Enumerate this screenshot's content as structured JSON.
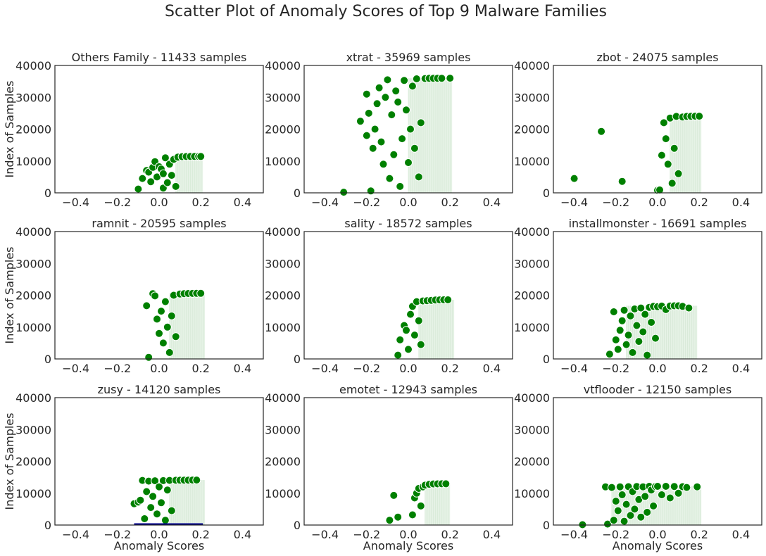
{
  "chart_data": {
    "type": "scatter",
    "title": "Scatter Plot of Anomaly Scores of Top 9 Malware Families",
    "xlabel": "Anomaly Scores",
    "ylabel": "Index of Samples",
    "xlim": [
      -0.5,
      0.5
    ],
    "ylim": [
      0,
      40000
    ],
    "x_ticks": [
      "−0.4",
      "−0.2",
      "0.0",
      "0.2",
      "0.4"
    ],
    "y_ticks": [
      "0",
      "10000",
      "20000",
      "30000",
      "40000"
    ],
    "grid": false,
    "colors": {
      "points": "#008000",
      "point_edge": "#ffffff",
      "dense_band": "#e6f2e6",
      "zusy_line": "#00008b"
    },
    "panels": [
      {
        "family": "Others Family",
        "title": "Others Family - 11433 samples",
        "samples": 11433,
        "dense_range": [
          0.08,
          0.21
        ],
        "points": [
          [
            -0.1,
            1200
          ],
          [
            -0.08,
            4500
          ],
          [
            -0.06,
            7000
          ],
          [
            -0.05,
            6500
          ],
          [
            -0.04,
            3500
          ],
          [
            -0.03,
            8000
          ],
          [
            -0.02,
            9800
          ],
          [
            -0.01,
            5000
          ],
          [
            0.0,
            8200
          ],
          [
            0.01,
            7500
          ],
          [
            0.02,
            1500
          ],
          [
            0.02,
            6000
          ],
          [
            0.03,
            11000
          ],
          [
            0.04,
            3200
          ],
          [
            0.05,
            9000
          ],
          [
            0.06,
            5500
          ],
          [
            0.07,
            10500
          ],
          [
            0.08,
            2000
          ],
          [
            0.09,
            11200
          ],
          [
            0.11,
            11350
          ],
          [
            0.13,
            11400
          ],
          [
            0.15,
            11420
          ],
          [
            0.17,
            11430
          ],
          [
            0.19,
            11433
          ],
          [
            0.2,
            11433
          ]
        ]
      },
      {
        "family": "xtrat",
        "title": "xtrat - 35969 samples",
        "samples": 35969,
        "dense_range": [
          0.0,
          0.21
        ],
        "points": [
          [
            -0.31,
            200
          ],
          [
            -0.23,
            22500
          ],
          [
            -0.2,
            31000
          ],
          [
            -0.2,
            18000
          ],
          [
            -0.19,
            25000
          ],
          [
            -0.18,
            600
          ],
          [
            -0.17,
            14000
          ],
          [
            -0.16,
            20000
          ],
          [
            -0.15,
            28000
          ],
          [
            -0.14,
            33000
          ],
          [
            -0.13,
            16000
          ],
          [
            -0.12,
            9000
          ],
          [
            -0.11,
            30000
          ],
          [
            -0.1,
            35500
          ],
          [
            -0.09,
            4500
          ],
          [
            -0.08,
            24500
          ],
          [
            -0.07,
            12000
          ],
          [
            -0.06,
            32000
          ],
          [
            -0.05,
            28500
          ],
          [
            -0.04,
            2000
          ],
          [
            -0.03,
            17000
          ],
          [
            -0.02,
            35300
          ],
          [
            -0.01,
            26000
          ],
          [
            0.0,
            9500
          ],
          [
            0.01,
            20000
          ],
          [
            0.02,
            33500
          ],
          [
            0.03,
            14000
          ],
          [
            0.04,
            35800
          ],
          [
            0.05,
            5000
          ],
          [
            0.06,
            22000
          ],
          [
            0.08,
            35900
          ],
          [
            0.1,
            35950
          ],
          [
            0.12,
            35960
          ],
          [
            0.14,
            35969
          ],
          [
            0.16,
            35969
          ],
          [
            0.2,
            36000
          ]
        ]
      },
      {
        "family": "zbot",
        "title": "zbot - 24075 samples",
        "samples": 24075,
        "dense_range": [
          0.06,
          0.21
        ],
        "points": [
          [
            -0.4,
            4500
          ],
          [
            -0.27,
            19300
          ],
          [
            -0.17,
            3600
          ],
          [
            0.0,
            800
          ],
          [
            0.01,
            900
          ],
          [
            0.02,
            11800
          ],
          [
            0.03,
            22000
          ],
          [
            0.04,
            17000
          ],
          [
            0.05,
            9000
          ],
          [
            0.06,
            23500
          ],
          [
            0.07,
            3000
          ],
          [
            0.08,
            14000
          ],
          [
            0.09,
            24000
          ],
          [
            0.1,
            6000
          ],
          [
            0.12,
            23800
          ],
          [
            0.14,
            24000
          ],
          [
            0.16,
            24050
          ],
          [
            0.18,
            24075
          ],
          [
            0.2,
            24075
          ]
        ]
      },
      {
        "family": "ramnit",
        "title": "ramnit - 20595 samples",
        "samples": 20595,
        "dense_range": [
          0.05,
          0.22
        ],
        "points": [
          [
            -0.06,
            16700
          ],
          [
            -0.05,
            500
          ],
          [
            -0.03,
            20500
          ],
          [
            -0.02,
            19800
          ],
          [
            -0.01,
            12500
          ],
          [
            0.0,
            8000
          ],
          [
            0.01,
            15000
          ],
          [
            0.02,
            5000
          ],
          [
            0.03,
            18000
          ],
          [
            0.04,
            10000
          ],
          [
            0.05,
            2000
          ],
          [
            0.06,
            13500
          ],
          [
            0.07,
            20000
          ],
          [
            0.08,
            7000
          ],
          [
            0.1,
            20400
          ],
          [
            0.12,
            20500
          ],
          [
            0.14,
            20550
          ],
          [
            0.16,
            20580
          ],
          [
            0.18,
            20595
          ],
          [
            0.2,
            20595
          ]
        ]
      },
      {
        "family": "sality",
        "title": "sality - 18572 samples",
        "samples": 18572,
        "dense_range": [
          0.05,
          0.22
        ],
        "points": [
          [
            -0.05,
            1200
          ],
          [
            -0.04,
            6000
          ],
          [
            -0.02,
            10500
          ],
          [
            -0.01,
            9000
          ],
          [
            0.0,
            3000
          ],
          [
            0.01,
            14000
          ],
          [
            0.02,
            16500
          ],
          [
            0.03,
            7500
          ],
          [
            0.04,
            18000
          ],
          [
            0.05,
            12000
          ],
          [
            0.06,
            4500
          ],
          [
            0.07,
            18200
          ],
          [
            0.09,
            18300
          ],
          [
            0.11,
            18400
          ],
          [
            0.13,
            18500
          ],
          [
            0.15,
            18550
          ],
          [
            0.17,
            18572
          ],
          [
            0.19,
            18572
          ]
        ]
      },
      {
        "family": "installmonster",
        "title": "installmonster - 16691 samples",
        "samples": 16691,
        "dense_range": [
          -0.15,
          0.19
        ],
        "points": [
          [
            -0.23,
            1500
          ],
          [
            -0.21,
            14800
          ],
          [
            -0.2,
            6000
          ],
          [
            -0.19,
            3000
          ],
          [
            -0.18,
            9000
          ],
          [
            -0.17,
            12000
          ],
          [
            -0.16,
            15300
          ],
          [
            -0.15,
            4500
          ],
          [
            -0.14,
            7500
          ],
          [
            -0.13,
            13500
          ],
          [
            -0.12,
            2000
          ],
          [
            -0.11,
            15700
          ],
          [
            -0.1,
            10500
          ],
          [
            -0.09,
            5500
          ],
          [
            -0.08,
            16000
          ],
          [
            -0.07,
            8500
          ],
          [
            -0.06,
            14000
          ],
          [
            -0.05,
            1200
          ],
          [
            -0.04,
            16200
          ],
          [
            -0.03,
            11500
          ],
          [
            -0.02,
            16500
          ],
          [
            -0.01,
            6500
          ],
          [
            0.0,
            16400
          ],
          [
            0.02,
            16600
          ],
          [
            0.04,
            15500
          ],
          [
            0.06,
            16650
          ],
          [
            0.08,
            16691
          ],
          [
            0.1,
            16691
          ],
          [
            0.12,
            16500
          ],
          [
            0.15,
            16000
          ]
        ]
      },
      {
        "family": "zusy",
        "title": "zusy - 14120 samples",
        "samples": 14120,
        "dense_range": [
          0.05,
          0.22
        ],
        "points": [
          [
            -0.12,
            6700
          ],
          [
            -0.1,
            7200
          ],
          [
            -0.09,
            7800
          ],
          [
            -0.08,
            14000
          ],
          [
            -0.07,
            2000
          ],
          [
            -0.06,
            10500
          ],
          [
            -0.05,
            13800
          ],
          [
            -0.04,
            5500
          ],
          [
            -0.03,
            9000
          ],
          [
            -0.02,
            13900
          ],
          [
            -0.01,
            3500
          ],
          [
            0.0,
            12000
          ],
          [
            0.01,
            7000
          ],
          [
            0.02,
            13950
          ],
          [
            0.03,
            1500
          ],
          [
            0.04,
            11000
          ],
          [
            0.05,
            14000
          ],
          [
            0.06,
            4500
          ],
          [
            0.08,
            14050
          ],
          [
            0.1,
            14080
          ],
          [
            0.12,
            14100
          ],
          [
            0.14,
            14110
          ],
          [
            0.16,
            14120
          ],
          [
            0.18,
            14120
          ]
        ],
        "line": {
          "x": [
            -0.12,
            0.21
          ],
          "y": 0
        }
      },
      {
        "family": "emotet",
        "title": "emotet - 12943 samples",
        "samples": 12943,
        "dense_range": [
          0.08,
          0.2
        ],
        "points": [
          [
            -0.09,
            1500
          ],
          [
            -0.07,
            9300
          ],
          [
            -0.05,
            2500
          ],
          [
            0.02,
            3200
          ],
          [
            0.03,
            8500
          ],
          [
            0.04,
            10000
          ],
          [
            0.05,
            11500
          ],
          [
            0.06,
            6000
          ],
          [
            0.07,
            12000
          ],
          [
            0.08,
            12500
          ],
          [
            0.1,
            12800
          ],
          [
            0.12,
            12900
          ],
          [
            0.14,
            12930
          ],
          [
            0.16,
            12943
          ],
          [
            0.18,
            12943
          ]
        ]
      },
      {
        "family": "vtflooder",
        "title": "vtflooder - 12150 samples",
        "samples": 12150,
        "dense_range": [
          -0.22,
          0.21
        ],
        "points": [
          [
            -0.36,
            100
          ],
          [
            -0.25,
            12000
          ],
          [
            -0.24,
            300
          ],
          [
            -0.22,
            11800
          ],
          [
            -0.21,
            1500
          ],
          [
            -0.2,
            7500
          ],
          [
            -0.19,
            4500
          ],
          [
            -0.18,
            12000
          ],
          [
            -0.17,
            9500
          ],
          [
            -0.16,
            1200
          ],
          [
            -0.15,
            6500
          ],
          [
            -0.14,
            12050
          ],
          [
            -0.13,
            3000
          ],
          [
            -0.12,
            10500
          ],
          [
            -0.11,
            5000
          ],
          [
            -0.1,
            12100
          ],
          [
            -0.09,
            8000
          ],
          [
            -0.08,
            2500
          ],
          [
            -0.07,
            12000
          ],
          [
            -0.06,
            9000
          ],
          [
            -0.05,
            4000
          ],
          [
            -0.04,
            12150
          ],
          [
            -0.03,
            11000
          ],
          [
            -0.02,
            6000
          ],
          [
            -0.01,
            12100
          ],
          [
            0.0,
            12150
          ],
          [
            0.02,
            9500
          ],
          [
            0.04,
            12150
          ],
          [
            0.06,
            8500
          ],
          [
            0.08,
            12100
          ],
          [
            0.1,
            10000
          ],
          [
            0.12,
            12050
          ],
          [
            0.14,
            11800
          ],
          [
            0.19,
            12000
          ]
        ]
      }
    ]
  }
}
